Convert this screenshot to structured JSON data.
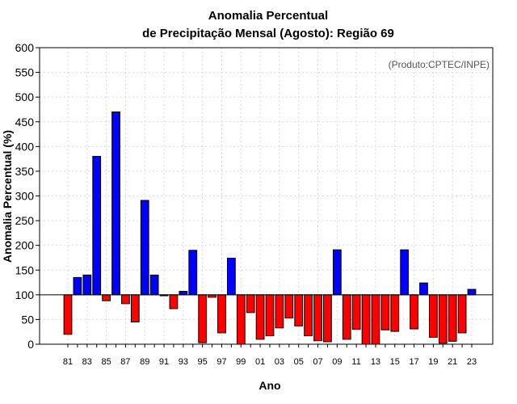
{
  "chart_data": {
    "type": "bar",
    "title_line1": "Anomalia Percentual",
    "title_line2": "de Precipitação Mensal (Agosto): Região 69",
    "credit": "(Produto:CPTEC/INPE)",
    "xlabel": "Ano",
    "ylabel": "Anomalia Percentual (%)",
    "ylim": [
      0,
      600
    ],
    "yticks": [
      0,
      50,
      100,
      150,
      200,
      250,
      300,
      350,
      400,
      450,
      500,
      550,
      600
    ],
    "baseline": 100,
    "grid": true,
    "colors": {
      "above": "#0000ff",
      "below": "#ff0000",
      "edge": "#000000",
      "grid": "#d9d9d9"
    },
    "categories": [
      "81",
      "82",
      "83",
      "84",
      "85",
      "86",
      "87",
      "88",
      "89",
      "90",
      "91",
      "92",
      "93",
      "94",
      "95",
      "96",
      "97",
      "98",
      "99",
      "00",
      "01",
      "02",
      "03",
      "04",
      "05",
      "06",
      "07",
      "08",
      "09",
      "10",
      "11",
      "12",
      "13",
      "14",
      "15",
      "16",
      "17",
      "18",
      "19",
      "20",
      "21",
      "22",
      "23"
    ],
    "tick_labels": [
      "81",
      "83",
      "85",
      "87",
      "89",
      "91",
      "93",
      "95",
      "97",
      "99",
      "01",
      "03",
      "05",
      "07",
      "09",
      "11",
      "13",
      "15",
      "17",
      "19",
      "21",
      "23"
    ],
    "values": [
      20,
      135,
      140,
      380,
      88,
      470,
      82,
      45,
      291,
      140,
      98,
      72,
      107,
      190,
      3,
      95,
      23,
      174,
      0,
      64,
      10,
      17,
      33,
      53,
      37,
      17,
      7,
      5,
      191,
      10,
      30,
      0,
      0,
      29,
      26,
      191,
      31,
      124,
      14,
      2,
      6,
      23,
      111
    ]
  }
}
